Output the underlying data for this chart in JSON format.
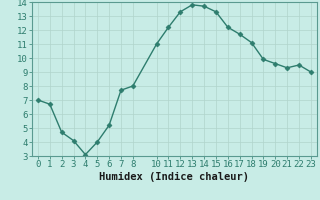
{
  "x": [
    0,
    1,
    2,
    3,
    4,
    5,
    6,
    7,
    8,
    10,
    11,
    12,
    13,
    14,
    15,
    16,
    17,
    18,
    19,
    20,
    21,
    22,
    23
  ],
  "y": [
    7.0,
    6.7,
    4.7,
    4.1,
    3.1,
    4.0,
    5.2,
    7.7,
    8.0,
    11.0,
    12.2,
    13.3,
    13.8,
    13.7,
    13.3,
    12.2,
    11.7,
    11.1,
    9.9,
    9.6,
    9.3,
    9.5,
    9.0
  ],
  "line_color": "#2e7d6e",
  "marker": "D",
  "markersize": 2.5,
  "linewidth": 1.0,
  "bg_color": "#c8ece6",
  "grid_color": "#b0d4cc",
  "xlabel": "Humidex (Indice chaleur)",
  "xlabel_fontsize": 7.5,
  "tick_fontsize": 6.5,
  "xlim": [
    -0.5,
    23.5
  ],
  "ylim": [
    3,
    14
  ],
  "yticks": [
    3,
    4,
    5,
    6,
    7,
    8,
    9,
    10,
    11,
    12,
    13,
    14
  ],
  "xticks": [
    0,
    1,
    2,
    3,
    4,
    5,
    6,
    7,
    8,
    10,
    11,
    12,
    13,
    14,
    15,
    16,
    17,
    18,
    19,
    20,
    21,
    22,
    23
  ]
}
